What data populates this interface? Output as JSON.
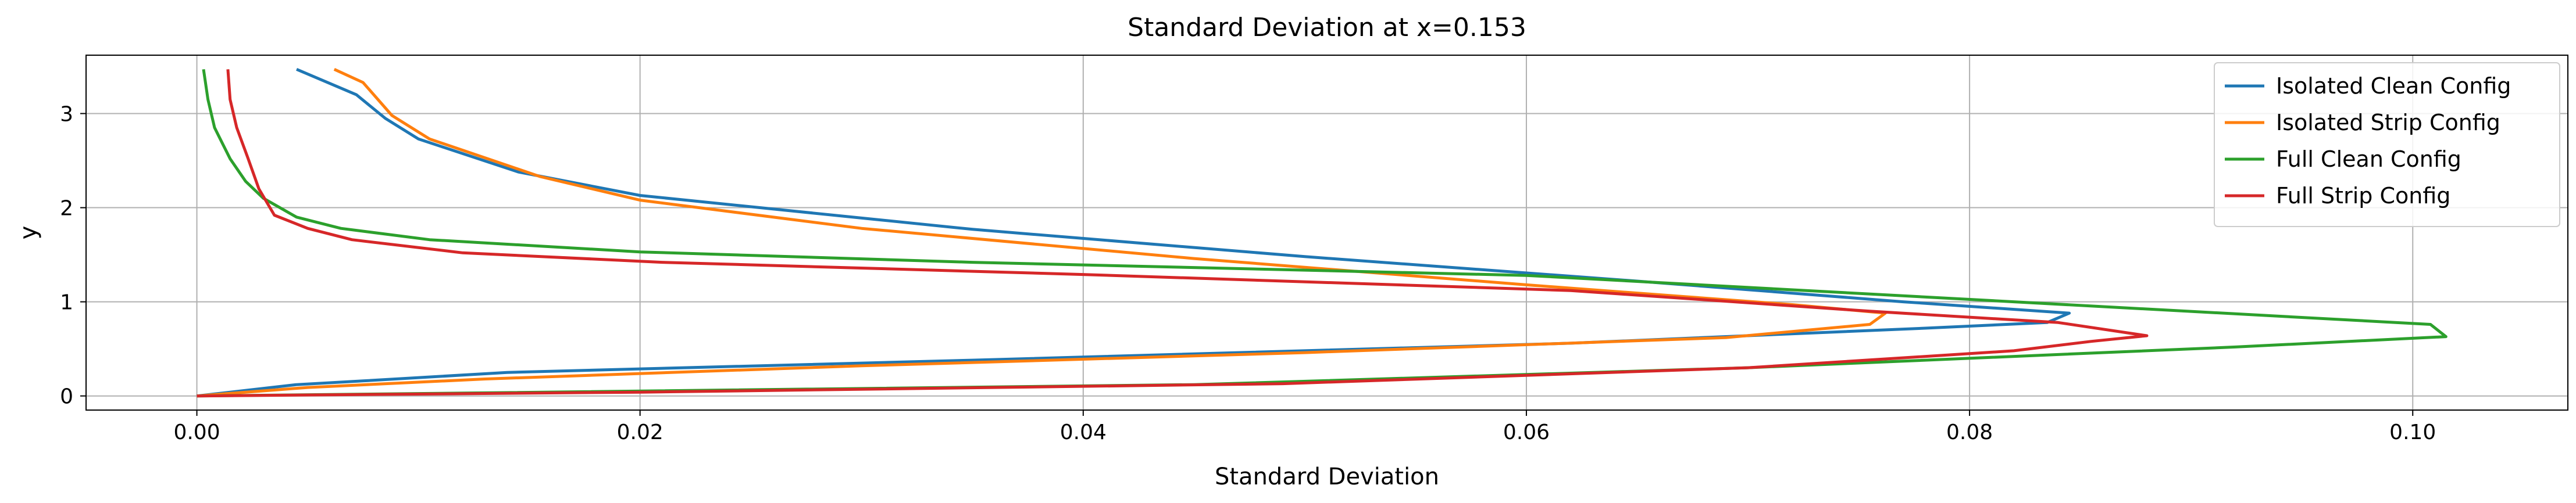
{
  "chart_data": {
    "type": "line",
    "title": "Standard Deviation at x=0.153",
    "xlabel": "Standard Deviation",
    "ylabel": "y",
    "xlim": [
      -0.005,
      0.107
    ],
    "ylim": [
      -0.15,
      3.62
    ],
    "xticks": [
      0.0,
      0.02,
      0.04,
      0.06,
      0.08,
      0.1
    ],
    "xtick_labels": [
      "0.00",
      "0.02",
      "0.04",
      "0.06",
      "0.08",
      "0.10"
    ],
    "yticks": [
      0,
      1,
      2,
      3
    ],
    "ytick_labels": [
      "0",
      "1",
      "2",
      "3"
    ],
    "grid": true,
    "legend_position": "top-right",
    "series": [
      {
        "name": "Isolated Clean Config",
        "color": "#1f77b4",
        "points": [
          [
            0.0,
            0.0
          ],
          [
            0.0045,
            0.12
          ],
          [
            0.0075,
            0.16
          ],
          [
            0.014,
            0.25
          ],
          [
            0.035,
            0.38
          ],
          [
            0.062,
            0.56
          ],
          [
            0.078,
            0.72
          ],
          [
            0.0835,
            0.78
          ],
          [
            0.0845,
            0.88
          ],
          [
            0.077,
            1.0
          ],
          [
            0.065,
            1.22
          ],
          [
            0.05,
            1.48
          ],
          [
            0.035,
            1.77
          ],
          [
            0.02,
            2.13
          ],
          [
            0.0145,
            2.38
          ],
          [
            0.01,
            2.73
          ],
          [
            0.0085,
            2.95
          ],
          [
            0.0072,
            3.2
          ],
          [
            0.0045,
            3.47
          ]
        ]
      },
      {
        "name": "Isolated Strip Config",
        "color": "#ff7f0e",
        "points": [
          [
            0.0,
            0.0
          ],
          [
            0.005,
            0.09
          ],
          [
            0.013,
            0.18
          ],
          [
            0.03,
            0.32
          ],
          [
            0.05,
            0.46
          ],
          [
            0.069,
            0.62
          ],
          [
            0.0755,
            0.76
          ],
          [
            0.0762,
            0.88
          ],
          [
            0.072,
            0.97
          ],
          [
            0.06,
            1.18
          ],
          [
            0.045,
            1.46
          ],
          [
            0.03,
            1.78
          ],
          [
            0.02,
            2.08
          ],
          [
            0.0155,
            2.33
          ],
          [
            0.0105,
            2.73
          ],
          [
            0.0088,
            2.98
          ],
          [
            0.0075,
            3.33
          ],
          [
            0.0062,
            3.47
          ]
        ]
      },
      {
        "name": "Full Clean Config",
        "color": "#2ca02c",
        "points": [
          [
            0.0,
            0.0
          ],
          [
            0.012,
            0.03
          ],
          [
            0.045,
            0.12
          ],
          [
            0.07,
            0.3
          ],
          [
            0.092,
            0.52
          ],
          [
            0.1015,
            0.63
          ],
          [
            0.1008,
            0.76
          ],
          [
            0.082,
            1.0
          ],
          [
            0.06,
            1.28
          ],
          [
            0.035,
            1.42
          ],
          [
            0.02,
            1.53
          ],
          [
            0.0105,
            1.66
          ],
          [
            0.0065,
            1.78
          ],
          [
            0.0045,
            1.9
          ],
          [
            0.003,
            2.1
          ],
          [
            0.0022,
            2.28
          ],
          [
            0.0015,
            2.52
          ],
          [
            0.0008,
            2.85
          ],
          [
            0.0005,
            3.15
          ],
          [
            0.0003,
            3.47
          ]
        ]
      },
      {
        "name": "Full Strip Config",
        "color": "#d62728",
        "points": [
          [
            0.0,
            0.0
          ],
          [
            0.02,
            0.04
          ],
          [
            0.049,
            0.13
          ],
          [
            0.07,
            0.3
          ],
          [
            0.082,
            0.48
          ],
          [
            0.0855,
            0.58
          ],
          [
            0.088,
            0.64
          ],
          [
            0.084,
            0.78
          ],
          [
            0.0755,
            0.9
          ],
          [
            0.062,
            1.12
          ],
          [
            0.04,
            1.29
          ],
          [
            0.021,
            1.42
          ],
          [
            0.012,
            1.52
          ],
          [
            0.007,
            1.66
          ],
          [
            0.005,
            1.78
          ],
          [
            0.0035,
            1.92
          ],
          [
            0.0028,
            2.2
          ],
          [
            0.0023,
            2.53
          ],
          [
            0.0018,
            2.85
          ],
          [
            0.0015,
            3.15
          ],
          [
            0.0014,
            3.47
          ]
        ]
      }
    ]
  }
}
